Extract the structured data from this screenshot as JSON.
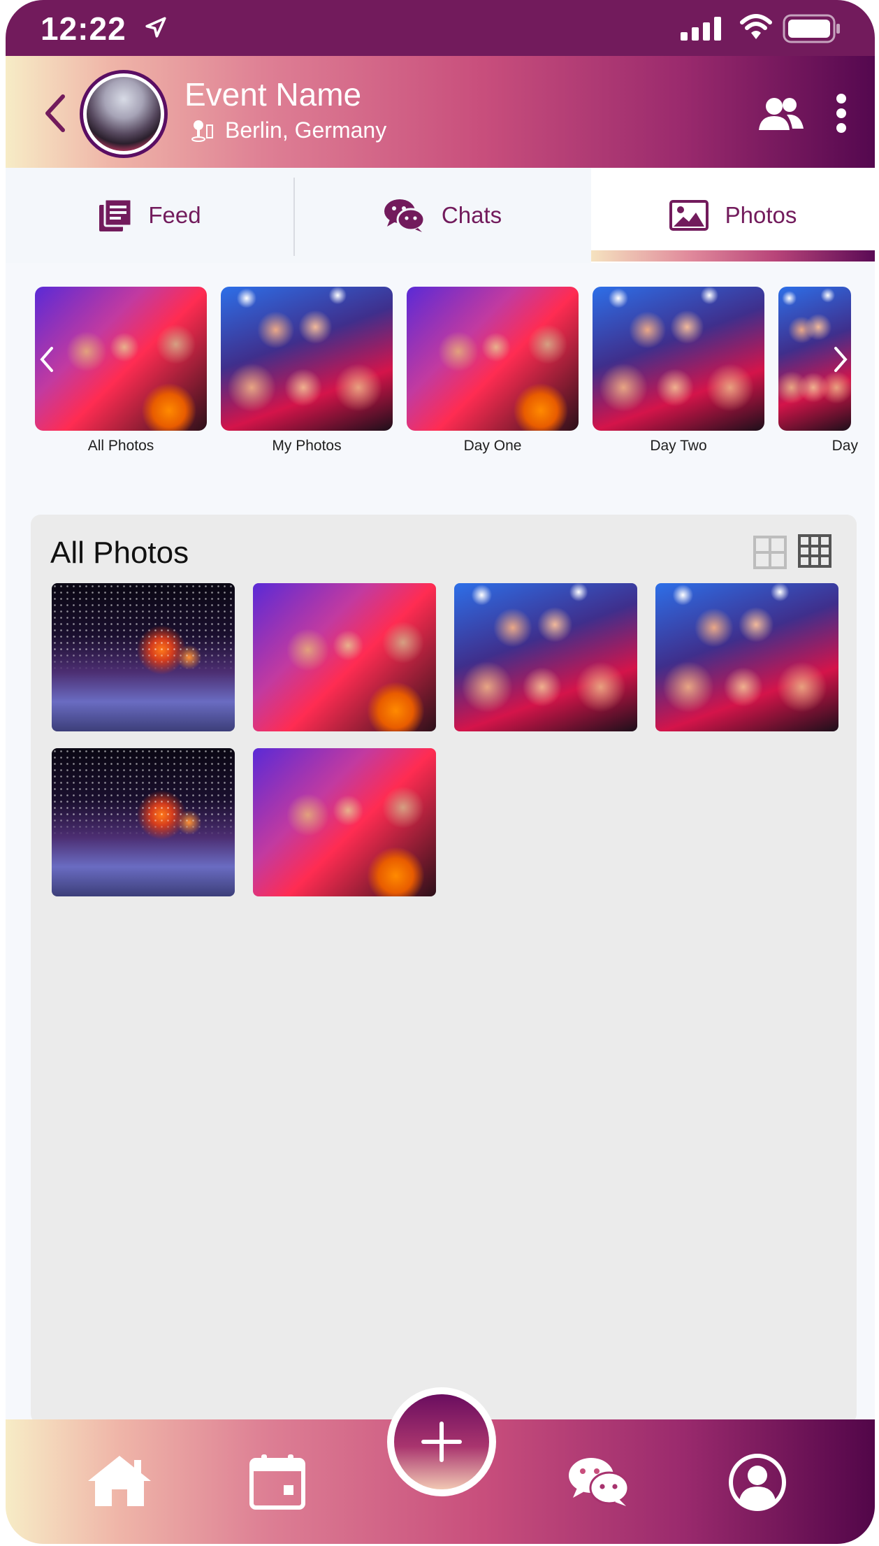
{
  "status_bar": {
    "time": "12:22"
  },
  "header": {
    "event_name": "Event Name",
    "location": "Berlin, Germany"
  },
  "tabs": [
    {
      "label": "Feed",
      "icon": "feed-icon"
    },
    {
      "label": "Chats",
      "icon": "chat-icon"
    },
    {
      "label": "Photos",
      "icon": "image-icon",
      "active": true
    }
  ],
  "albums": [
    {
      "label": "All Photos",
      "image": "halloween-party"
    },
    {
      "label": "My Photos",
      "image": "mustache-party"
    },
    {
      "label": "Day One",
      "image": "halloween-party"
    },
    {
      "label": "Day Two",
      "image": "mustache-party"
    },
    {
      "label": "Day",
      "image": "mustache-party"
    }
  ],
  "gallery": {
    "title": "All Photos",
    "photos": [
      "event-venue",
      "halloween-party",
      "mustache-party",
      "mustache-party",
      "event-venue",
      "halloween-party"
    ]
  },
  "bottom_nav": {
    "items": [
      "home-icon",
      "calendar-icon",
      "add-icon",
      "chat-icon",
      "profile-icon"
    ]
  },
  "colors": {
    "brand_purple": "#721b5c",
    "gradient_start": "#f7ecc6",
    "gradient_end": "#520649",
    "gallery_bg": "#ebebeb"
  }
}
